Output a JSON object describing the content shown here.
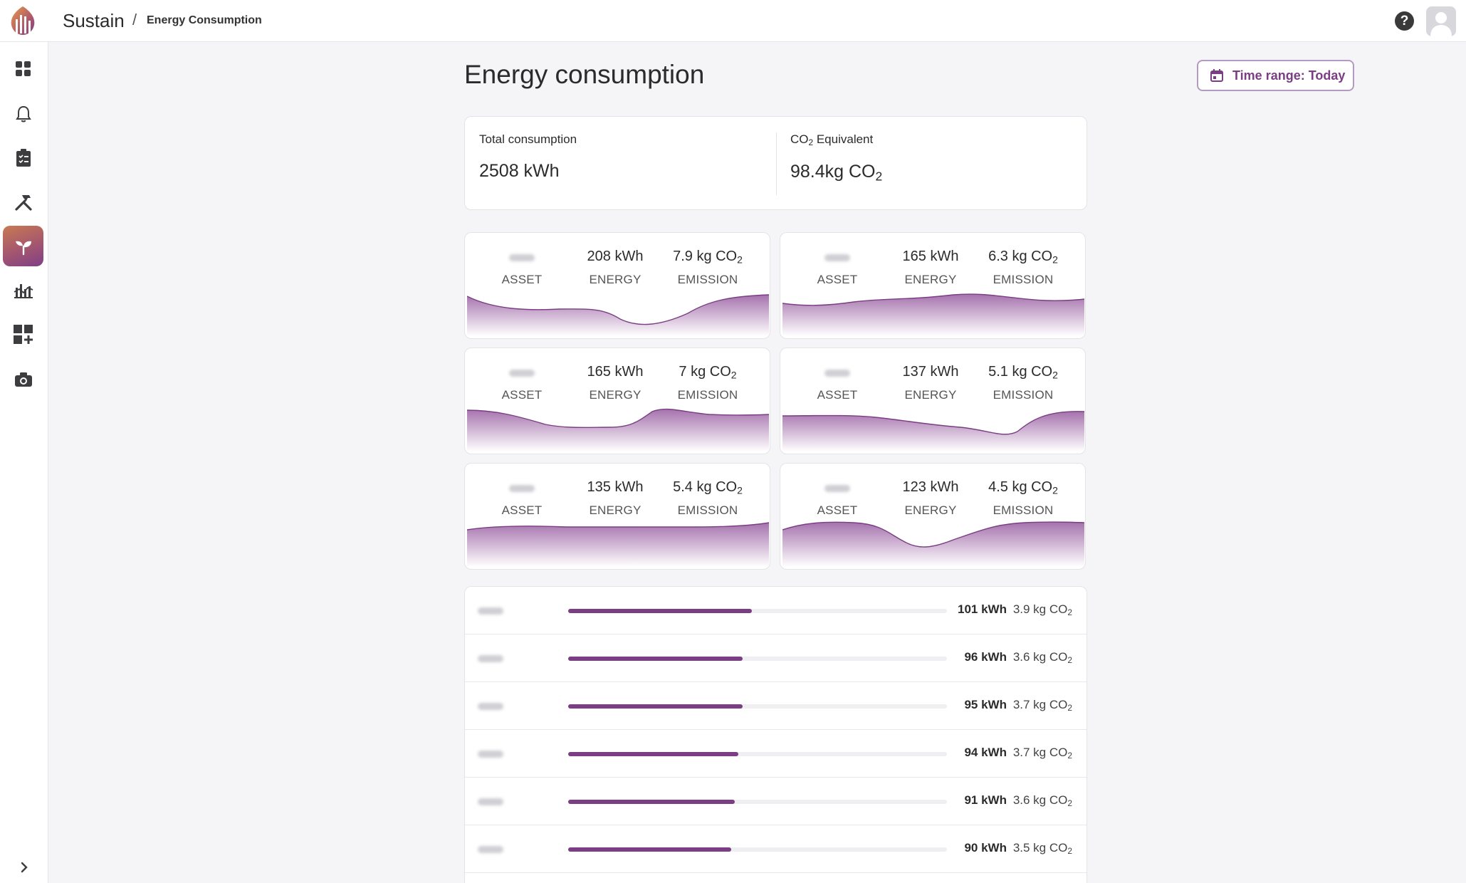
{
  "app": {
    "title": "Sustain"
  },
  "breadcrumb": {
    "separator": "/",
    "page": "Energy Consumption"
  },
  "page": {
    "title": "Energy consumption"
  },
  "time_range": {
    "label": "Time range: Today"
  },
  "summary": {
    "total_label": "Total consumption",
    "total_value": "2508 kWh",
    "co2_label_prefix": "CO",
    "co2_label_sub": "2",
    "co2_label_suffix": " Equivalent",
    "co2_value_prefix": "98.4kg CO",
    "co2_value_sub": "2"
  },
  "labels": {
    "asset": "ASSET",
    "energy": "ENERGY",
    "emission": "EMISSION",
    "co2_sub": "2"
  },
  "assets": [
    {
      "energy": "208 kWh",
      "emission": "7.9 kg CO"
    },
    {
      "energy": "165 kWh",
      "emission": "6.3 kg CO"
    },
    {
      "energy": "165 kWh",
      "emission": "7 kg CO"
    },
    {
      "energy": "137 kWh",
      "emission": "5.1 kg CO"
    },
    {
      "energy": "135 kWh",
      "emission": "5.4 kg CO"
    },
    {
      "energy": "123 kWh",
      "emission": "4.5 kg CO"
    }
  ],
  "list": [
    {
      "kwh": "101 kWh",
      "co2": "3.9 kg CO",
      "share": 0.485
    },
    {
      "kwh": "96 kWh",
      "co2": "3.6 kg CO",
      "share": 0.46
    },
    {
      "kwh": "95 kWh",
      "co2": "3.7 kg CO",
      "share": 0.46
    },
    {
      "kwh": "94 kWh",
      "co2": "3.7 kg CO",
      "share": 0.45
    },
    {
      "kwh": "91 kWh",
      "co2": "3.6 kg CO",
      "share": 0.44
    },
    {
      "kwh": "90 kWh",
      "co2": "3.5 kg CO",
      "share": 0.43
    }
  ],
  "sidebar": {
    "items": [
      {
        "icon": "dashboard-icon"
      },
      {
        "icon": "bell-icon"
      },
      {
        "icon": "clipboard-icon"
      },
      {
        "icon": "tools-icon"
      },
      {
        "icon": "sprout-icon",
        "active": true
      },
      {
        "icon": "chart-icon"
      },
      {
        "icon": "add-widget-icon"
      },
      {
        "icon": "camera-icon"
      }
    ]
  },
  "colors": {
    "accent": "#7b3d83",
    "fill_top": "#a572ad",
    "fill_bottom": "#ffffff"
  }
}
